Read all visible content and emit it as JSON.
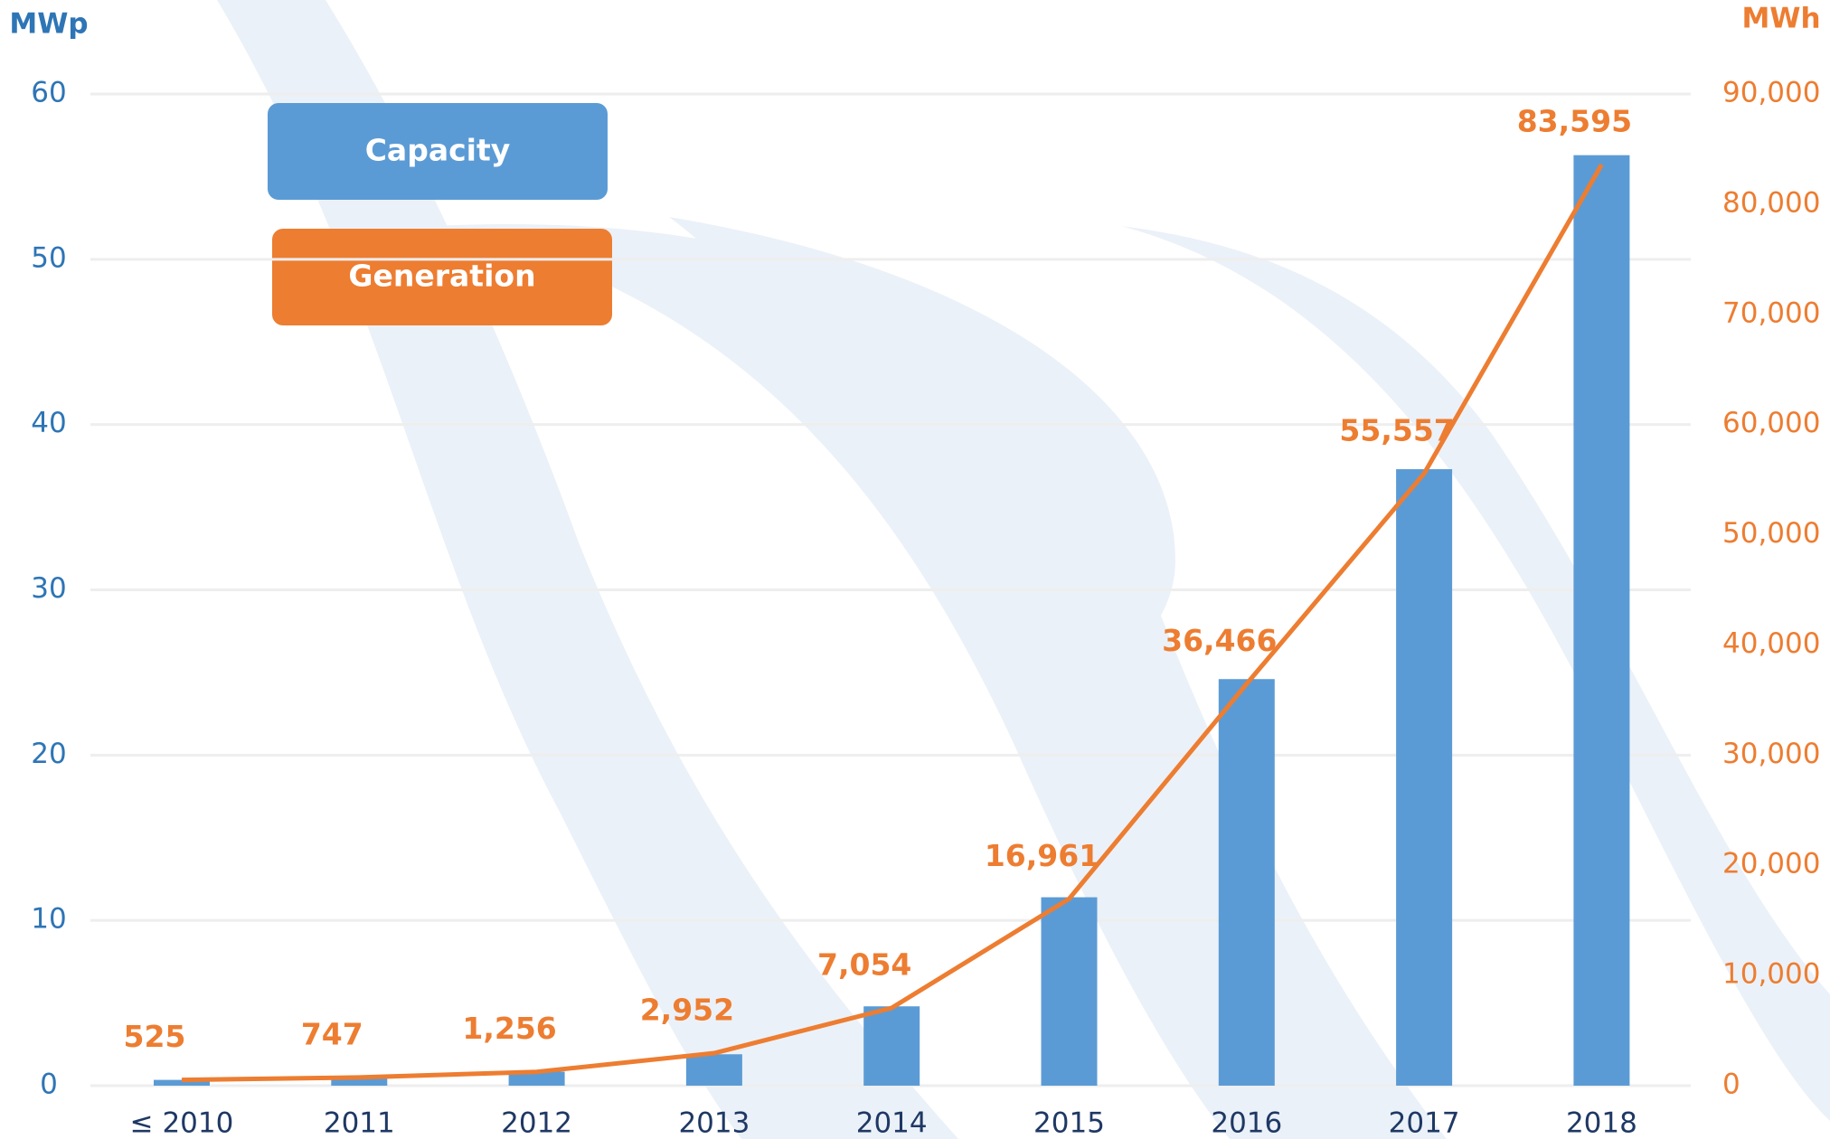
{
  "chart_data": {
    "type": "bar",
    "y_label": "MWp",
    "y2_label": "MWh",
    "categories": [
      "≤ 2010",
      "2011",
      "2012",
      "2013",
      "2014",
      "2015",
      "2016",
      "2017",
      "2018"
    ],
    "series": [
      {
        "name": "Capacity",
        "type": "bar",
        "color": "#5b9bd5",
        "values": [
          0.35,
          0.5,
          0.85,
          1.9,
          4.8,
          11.4,
          24.6,
          37.3,
          56.3
        ]
      },
      {
        "name": "Generation",
        "type": "line",
        "axis": "y2",
        "color": "#ed7d31",
        "values": [
          525,
          747,
          1256,
          2952,
          7054,
          16961,
          36466,
          55557,
          83595
        ],
        "value_labels": [
          "525",
          "747",
          "1,256",
          "2,952",
          "7,054",
          "16,961",
          "36,466",
          "55,557",
          "83,595"
        ]
      }
    ],
    "ylim": [
      0,
      60
    ],
    "yticks": [
      0,
      10,
      20,
      30,
      40,
      50,
      60
    ],
    "y2lim": [
      0,
      90000
    ],
    "y2ticks": [
      0,
      {
        "value": 10000,
        "label": "10,000"
      },
      {
        "value": 20000,
        "label": "20,000"
      },
      {
        "value": 30000,
        "label": "30,000"
      },
      {
        "value": 40000,
        "label": "40,000"
      },
      {
        "value": 50000,
        "label": "50,000"
      },
      {
        "value": 60000,
        "label": "60,000"
      },
      {
        "value": 70000,
        "label": "70,000"
      },
      {
        "value": 80000,
        "label": "80,000"
      },
      {
        "value": 90000,
        "label": "90,000"
      }
    ],
    "grid": true,
    "legend": "top-left"
  }
}
